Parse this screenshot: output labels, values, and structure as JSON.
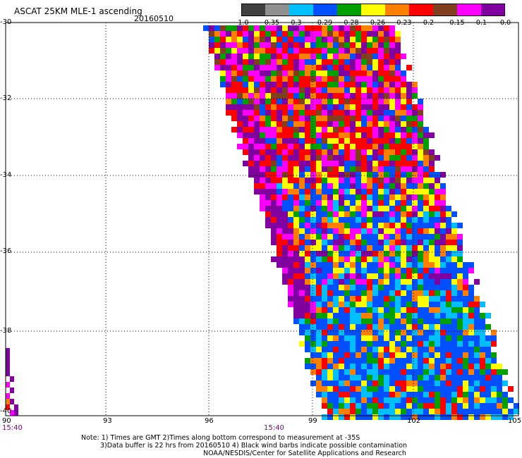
{
  "title": "ASCAT 25KM MLE-1 ascending",
  "date": "20160510",
  "colorbar": {
    "labels": [
      "-1.0",
      "-0.35",
      "-0.3",
      "-0.29",
      "-0.28",
      "-0.26",
      "-0.23",
      "-0.2",
      "-0.15",
      "-0.1",
      "0.0"
    ],
    "colors": [
      "#404040",
      "#909090",
      "#00bfff",
      "#0050ff",
      "#00a000",
      "#ffff00",
      "#ff8000",
      "#ff0000",
      "#804020",
      "#ff00ff",
      "#8000a0"
    ]
  },
  "axes": {
    "lat_labels": [
      "-30",
      "-32",
      "-34",
      "-36",
      "-38",
      "-40"
    ],
    "lon_labels": [
      "90",
      "93",
      "96",
      "99",
      "102",
      "105"
    ],
    "lat_range": [
      -40,
      -30
    ],
    "lon_range": [
      90,
      105
    ],
    "grid": true
  },
  "time_labels": [
    "15:40",
    "15:40"
  ],
  "notes": [
    "Note: 1) Times are GMT 2)Times along bottom correspond to measurement at -35S",
    "3)Data buffer is 22 hrs from 20160510 4) Black wind barbs indicate possible contamination",
    "NOAA/NESDIS/Center for Satellite Applications and Research"
  ]
}
